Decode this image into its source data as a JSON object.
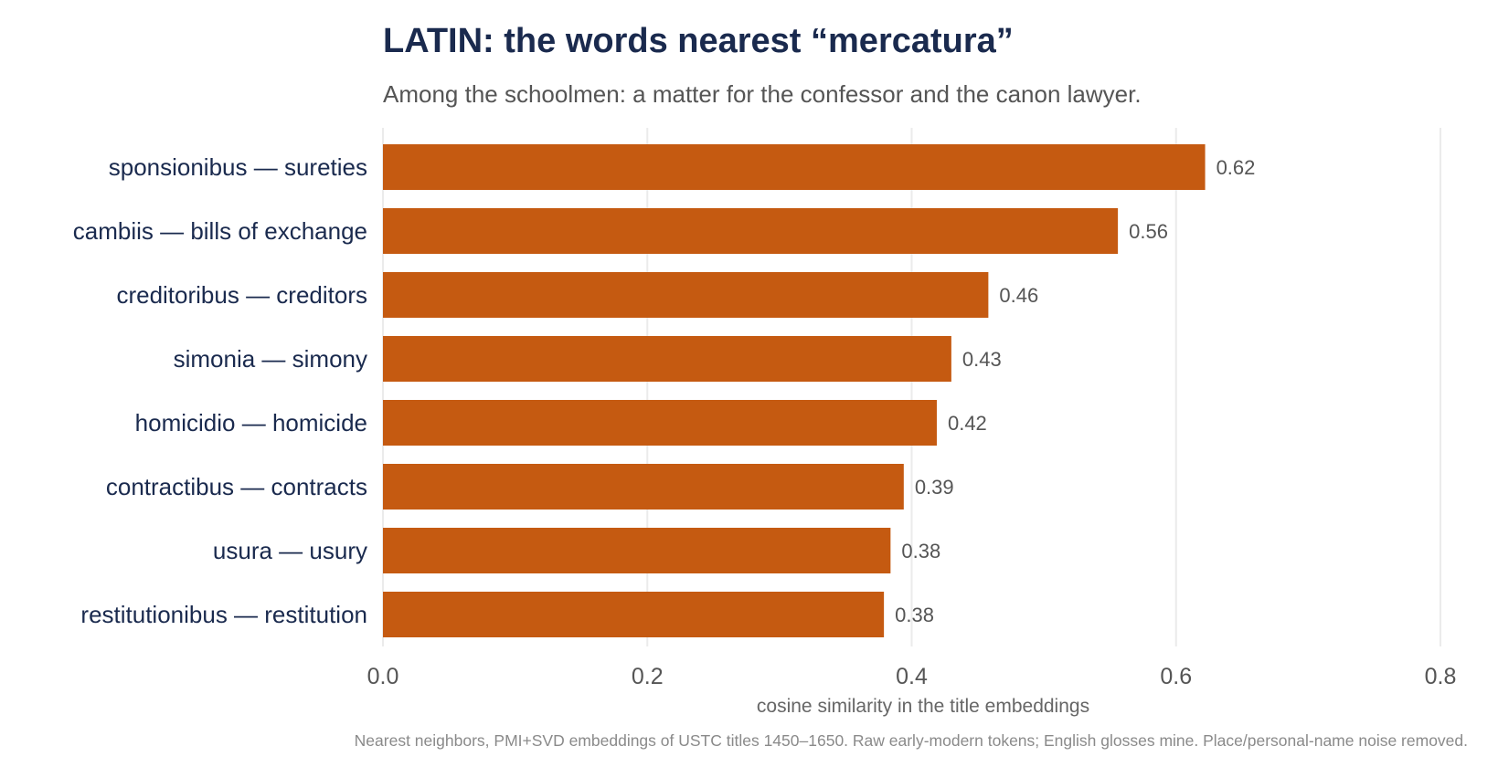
{
  "title": "LATIN: the words nearest “mercatura”",
  "subtitle": "Among the schoolmen: a matter for the confessor and the canon lawyer.",
  "caption": "Nearest neighbors, PMI+SVD embeddings of USTC titles 1450–1650. Raw early-modern tokens; English glosses mine. Place/personal-name noise removed.",
  "colors": {
    "bar": "#c55a11",
    "grid": "#ebebeb",
    "title": "#1a2a4e"
  },
  "chart_data": {
    "type": "bar",
    "orientation": "horizontal",
    "title": "LATIN: the words nearest “mercatura”",
    "subtitle": "Among the schoolmen: a matter for the confessor and the canon lawyer.",
    "xlabel": "cosine similarity in the title embeddings",
    "ylabel": "",
    "xlim": [
      0,
      0.8
    ],
    "xticks": [
      0.0,
      0.2,
      0.4,
      0.6,
      0.8
    ],
    "xtick_labels": [
      "0.0",
      "0.2",
      "0.4",
      "0.6",
      "0.8"
    ],
    "grid": true,
    "categories": [
      "sponsionibus  —  sureties",
      "cambiis  —  bills of exchange",
      "creditoribus  —  creditors",
      "simonia  —  simony",
      "homicidio  —  homicide",
      "contractibus  —  contracts",
      "usura  —  usury",
      "restitutionibus  —  restitution"
    ],
    "values": [
      0.622,
      0.556,
      0.458,
      0.43,
      0.419,
      0.394,
      0.384,
      0.379
    ],
    "value_labels": [
      "0.62",
      "0.56",
      "0.46",
      "0.43",
      "0.42",
      "0.39",
      "0.38",
      "0.38"
    ]
  }
}
